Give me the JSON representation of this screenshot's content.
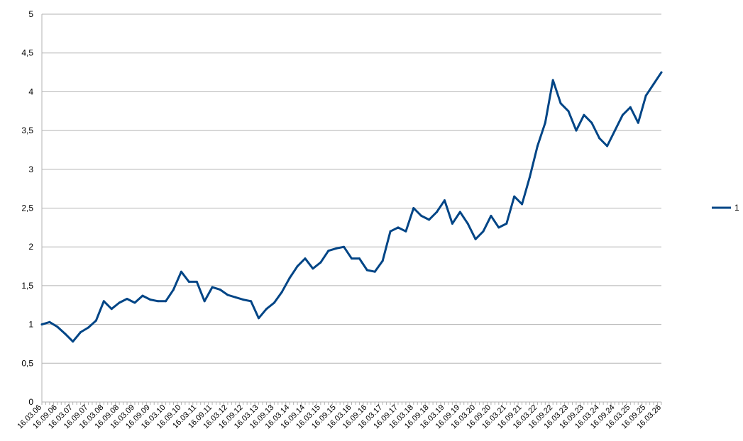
{
  "chart_data": {
    "type": "line",
    "title": "",
    "xlabel": "",
    "ylabel": "",
    "ylim": [
      0,
      5
    ],
    "y_ticks": [
      "0",
      "0,5",
      "1",
      "1,5",
      "2",
      "2,5",
      "3",
      "3,5",
      "4",
      "4,5",
      "5"
    ],
    "x_ticks": [
      "16.03.06",
      "16.09.06",
      "16.03.07",
      "16.09.07",
      "16.03.08",
      "16.09.08",
      "16.03.09",
      "16.09.09",
      "16.03.10",
      "16.09.10",
      "16.03.11",
      "16.09.11",
      "16.03.12",
      "16.09.12",
      "16.03.13",
      "16.09.13",
      "16.03.14",
      "16.09.14",
      "16.03.15",
      "16.09.15",
      "16.03.16",
      "16.09.16",
      "16.03.17",
      "16.09.17",
      "16.03.18",
      "16.09.18",
      "16.03.19",
      "16.09.19",
      "16.03.20",
      "16.09.20",
      "16.03.21",
      "16.09.21",
      "16.03.22",
      "16.09.22",
      "16.03.23",
      "16.09.23",
      "16.03.24",
      "16.09.24",
      "16.03.25",
      "16.09.25",
      "16.03.26"
    ],
    "grid": true,
    "legend_position": "right",
    "line_color": "#004586",
    "series": [
      {
        "name": "1",
        "x": [
          "16.03.06",
          "16.06.06",
          "16.09.06",
          "16.12.06",
          "16.03.07",
          "16.06.07",
          "16.09.07",
          "16.12.07",
          "16.03.08",
          "16.06.08",
          "16.09.08",
          "16.12.08",
          "16.03.09",
          "16.06.09",
          "16.09.09",
          "16.12.09",
          "16.03.10",
          "16.06.10",
          "16.09.10",
          "16.12.10",
          "16.03.11",
          "16.06.11",
          "16.09.11",
          "16.12.11",
          "16.03.12",
          "16.06.12",
          "16.09.12",
          "16.12.12",
          "16.03.13",
          "16.06.13",
          "16.09.13",
          "16.12.13",
          "16.03.14",
          "16.06.14",
          "16.09.14",
          "16.12.14",
          "16.03.15",
          "16.06.15",
          "16.09.15",
          "16.12.15",
          "16.03.16",
          "16.06.16",
          "16.09.16",
          "16.12.16",
          "16.03.17",
          "16.06.17",
          "16.09.17",
          "16.12.17",
          "16.03.18",
          "16.06.18",
          "16.09.18",
          "16.12.18",
          "16.03.19",
          "16.06.19",
          "16.09.19",
          "16.12.19",
          "16.03.20",
          "16.06.20",
          "16.09.20",
          "16.12.20",
          "16.03.21",
          "16.06.21",
          "16.09.21",
          "16.12.21",
          "16.03.22",
          "16.06.22",
          "16.09.22",
          "16.12.22",
          "16.03.23",
          "16.06.23",
          "16.09.23",
          "16.12.23",
          "16.03.24",
          "16.06.24",
          "16.09.24",
          "16.12.24",
          "16.03.25",
          "16.06.25",
          "16.09.25",
          "16.12.25",
          "16.03.26"
        ],
        "values": [
          1.0,
          1.03,
          0.97,
          0.88,
          0.78,
          0.9,
          0.96,
          1.05,
          1.3,
          1.2,
          1.28,
          1.33,
          1.28,
          1.37,
          1.32,
          1.3,
          1.3,
          1.45,
          1.68,
          1.55,
          1.55,
          1.3,
          1.48,
          1.45,
          1.38,
          1.35,
          1.32,
          1.3,
          1.08,
          1.2,
          1.28,
          1.42,
          1.6,
          1.75,
          1.85,
          1.72,
          1.8,
          1.95,
          1.98,
          2.0,
          1.85,
          1.85,
          1.7,
          1.68,
          1.82,
          2.2,
          2.25,
          2.2,
          2.5,
          2.4,
          2.35,
          2.45,
          2.6,
          2.3,
          2.45,
          2.3,
          2.1,
          2.2,
          2.4,
          2.25,
          2.3,
          2.65,
          2.55,
          2.9,
          3.3,
          3.6,
          4.15,
          3.85,
          3.75,
          3.5,
          3.7,
          3.6,
          3.4,
          3.3,
          3.5,
          3.7,
          3.8,
          3.6,
          3.95,
          4.1,
          4.25
        ]
      }
    ]
  }
}
